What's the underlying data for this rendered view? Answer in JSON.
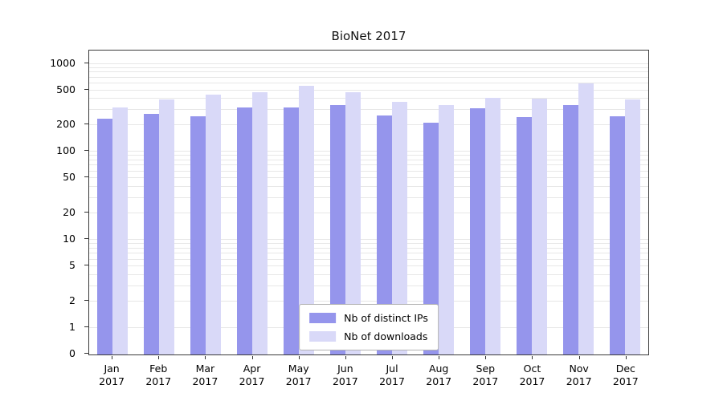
{
  "figure": {
    "title": "BioNet 2017"
  },
  "chart_data": {
    "type": "bar",
    "title": "BioNet 2017",
    "categories": [
      "Jan 2017",
      "Feb 2017",
      "Mar 2017",
      "Apr 2017",
      "May 2017",
      "Jun 2017",
      "Jul 2017",
      "Aug 2017",
      "Sep 2017",
      "Oct 2017",
      "Nov 2017",
      "Dec 2017"
    ],
    "series": [
      {
        "name": "Nb of distinct IPs",
        "color": "#9595ec",
        "values": [
          240,
          270,
          255,
          320,
          320,
          340,
          260,
          215,
          310,
          250,
          340,
          255
        ]
      },
      {
        "name": "Nb of downloads",
        "color": "#d9d9f8",
        "values": [
          320,
          390,
          450,
          480,
          560,
          480,
          370,
          340,
          410,
          400,
          600,
          395
        ]
      }
    ],
    "yscale": "symlog",
    "yticks": [
      0,
      1,
      2,
      5,
      10,
      20,
      50,
      100,
      200,
      500,
      1000
    ],
    "ylim": [
      0,
      1000
    ],
    "grid": "horizontal log minor gridlines",
    "legend_position": "lower center inside plot"
  }
}
